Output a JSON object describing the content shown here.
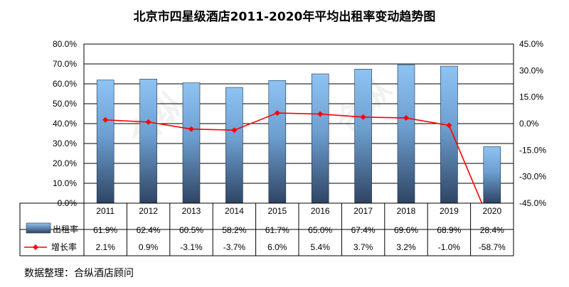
{
  "chart_data": {
    "type": "bar",
    "title": "北京市四星级酒店2011-2020年平均出租率变动趋势图",
    "categories": [
      "2011",
      "2012",
      "2013",
      "2014",
      "2015",
      "2016",
      "2017",
      "2018",
      "2019",
      "2020"
    ],
    "series": [
      {
        "name": "出租率",
        "type": "bar",
        "axis": "left",
        "values": [
          61.9,
          62.4,
          60.5,
          58.2,
          61.7,
          65.0,
          67.4,
          69.6,
          68.9,
          28.4
        ],
        "labels": [
          "61.9%",
          "62.4%",
          "60.5%",
          "58.2%",
          "61.7%",
          "65.0%",
          "67.4%",
          "69.6%",
          "68.9%",
          "28.4%"
        ],
        "color": "#7fb6ea"
      },
      {
        "name": "增长率",
        "type": "line",
        "axis": "right",
        "values": [
          2.1,
          0.9,
          -3.1,
          -3.7,
          6.0,
          5.4,
          3.7,
          3.2,
          -1.0,
          -58.7
        ],
        "labels": [
          "2.1%",
          "0.9%",
          "-3.1%",
          "-3.7%",
          "6.0%",
          "5.4%",
          "3.7%",
          "3.2%",
          "-1.0%",
          "-58.7%"
        ],
        "color": "#ff0000"
      }
    ],
    "y_left": {
      "ylim": [
        0,
        80
      ],
      "ticks": [
        0,
        10,
        20,
        30,
        40,
        50,
        60,
        70,
        80
      ],
      "tick_labels": [
        "0.0%",
        "10.0%",
        "20.0%",
        "30.0%",
        "40.0%",
        "50.0%",
        "60.0%",
        "70.0%",
        "80.0%"
      ]
    },
    "y_right": {
      "ylim": [
        -45,
        45
      ],
      "ticks": [
        -45,
        -30,
        -15,
        0,
        15,
        30,
        45
      ],
      "tick_labels": [
        "-45.0%",
        "-30.0%",
        "-15.0%",
        "0.0%",
        "15.0%",
        "30.0%",
        "45.0%"
      ]
    },
    "grid": true,
    "data_table": true
  },
  "source": "数据整理：合纵酒店顾问",
  "watermark": "合纵"
}
